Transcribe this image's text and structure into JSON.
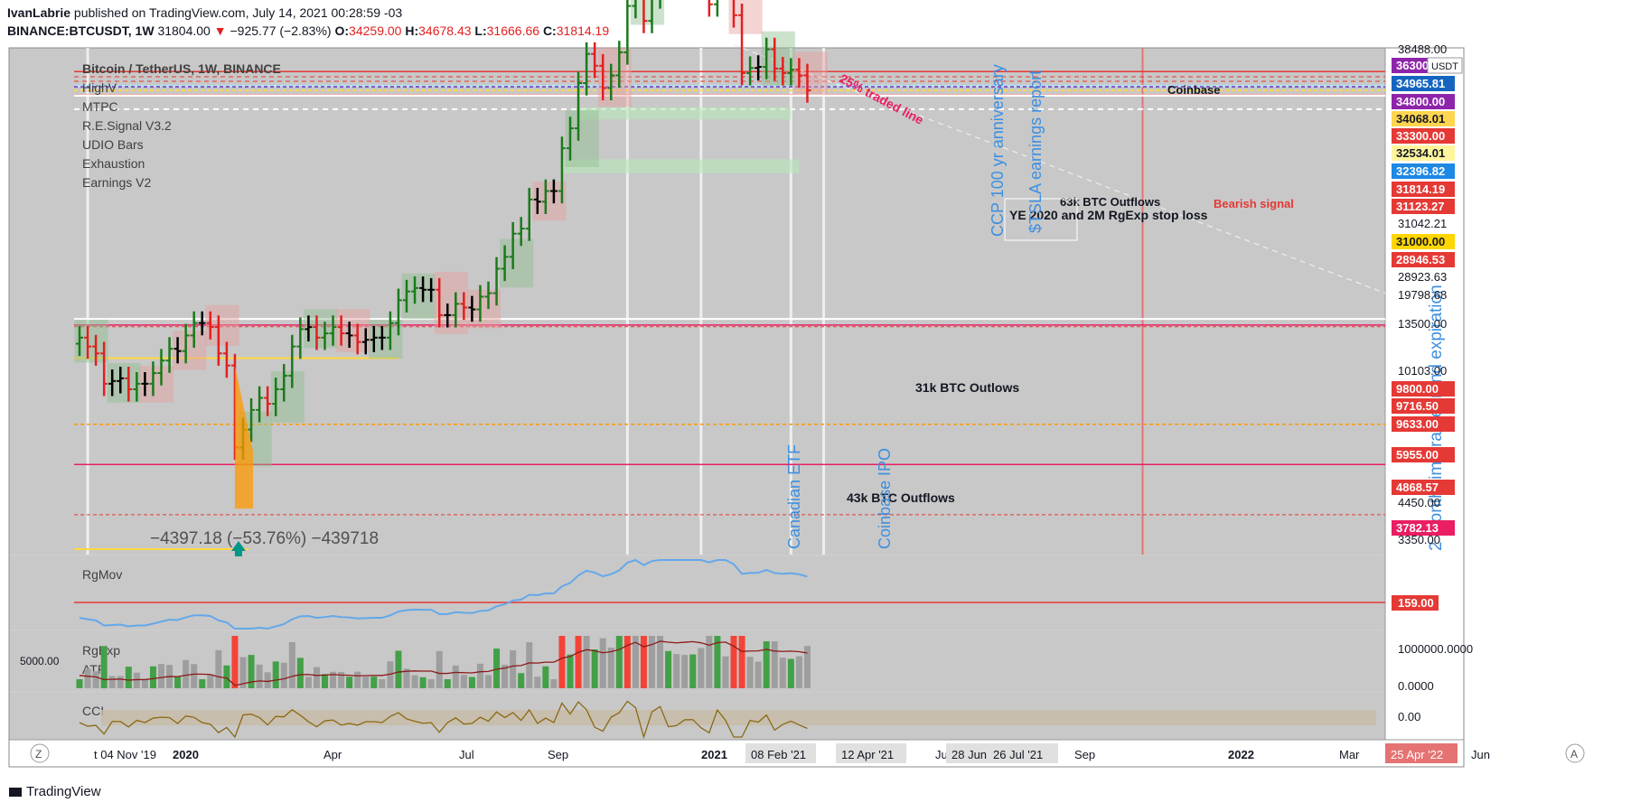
{
  "header": {
    "author": "IvanLabrie",
    "published": "published on TradingView.com, July 14, 2021 00:28:59 -03",
    "symbol": "BINANCE:BTCUSDT, 1W",
    "price": "31804.00",
    "change": "−925.77 (−2.83%)",
    "o_label": "O:",
    "o": "34259.00",
    "h_label": "H:",
    "h": "34678.43",
    "l_label": "L:",
    "l": "31666.66",
    "c_label": "C:",
    "c": "31814.19"
  },
  "legend": {
    "title": "Bitcoin / TetherUS, 1W, BINANCE",
    "indicators": [
      "HighV",
      "MTPC",
      "R.E.Signal V3.2",
      "UDIO Bars",
      "Exhaustion",
      "Earnings V2"
    ]
  },
  "footer": {
    "brand": "TradingView"
  },
  "colors": {
    "bg": "#c8c8c8",
    "up": "#1b7a1b",
    "down": "#e02020",
    "neutral": "#000000",
    "blue": "#3d8fe0",
    "crimson": "#e91e63"
  },
  "chart_data": [
    {
      "type": "line",
      "title": "Bitcoin / TetherUS, 1W, BINANCE",
      "scale": "log",
      "ylim": [
        3300,
        38500
      ],
      "x_ticks": [
        "t 04 Nov '19",
        "2020",
        "Apr",
        "Jul",
        "Sep",
        "2021",
        "08 Feb '21",
        "12 Apr '21",
        "Ju",
        "28 Jun '21",
        "26 Jul '21",
        "Sep",
        "2022",
        "Mar",
        "25 Apr '22",
        "Jun"
      ],
      "weekly_close": [
        {
          "x": "2019-10-28",
          "y": 9200
        },
        {
          "x": "2019-11-04",
          "y": 8800
        },
        {
          "x": "2019-11-11",
          "y": 8500
        },
        {
          "x": "2019-11-18",
          "y": 7300
        },
        {
          "x": "2019-11-25",
          "y": 7400
        },
        {
          "x": "2019-12-02",
          "y": 7500
        },
        {
          "x": "2019-12-09",
          "y": 7100
        },
        {
          "x": "2019-12-16",
          "y": 7300
        },
        {
          "x": "2019-12-23",
          "y": 7300
        },
        {
          "x": "2019-12-30",
          "y": 7700
        },
        {
          "x": "2020-01-06",
          "y": 8200
        },
        {
          "x": "2020-01-13",
          "y": 8700
        },
        {
          "x": "2020-01-20",
          "y": 8600
        },
        {
          "x": "2020-01-27",
          "y": 9300
        },
        {
          "x": "2020-02-03",
          "y": 9900
        },
        {
          "x": "2020-02-10",
          "y": 9900
        },
        {
          "x": "2020-02-17",
          "y": 9700
        },
        {
          "x": "2020-02-24",
          "y": 8500
        },
        {
          "x": "2020-03-02",
          "y": 8000
        },
        {
          "x": "2020-03-09",
          "y": 5300
        },
        {
          "x": "2020-03-16",
          "y": 5800
        },
        {
          "x": "2020-03-23",
          "y": 6400
        },
        {
          "x": "2020-03-30",
          "y": 6800
        },
        {
          "x": "2020-04-06",
          "y": 6600
        },
        {
          "x": "2020-04-13",
          "y": 7100
        },
        {
          "x": "2020-04-20",
          "y": 7600
        },
        {
          "x": "2020-04-27",
          "y": 8800
        },
        {
          "x": "2020-05-04",
          "y": 9600
        },
        {
          "x": "2020-05-11",
          "y": 9700
        },
        {
          "x": "2020-05-18",
          "y": 9200
        },
        {
          "x": "2020-05-25",
          "y": 9400
        },
        {
          "x": "2020-06-01",
          "y": 9700
        },
        {
          "x": "2020-06-08",
          "y": 9400
        },
        {
          "x": "2020-06-15",
          "y": 9300
        },
        {
          "x": "2020-06-22",
          "y": 9000
        },
        {
          "x": "2020-06-29",
          "y": 9100
        },
        {
          "x": "2020-07-06",
          "y": 9200
        },
        {
          "x": "2020-07-13",
          "y": 9200
        },
        {
          "x": "2020-07-20",
          "y": 9900
        },
        {
          "x": "2020-07-27",
          "y": 11100
        },
        {
          "x": "2020-08-03",
          "y": 11600
        },
        {
          "x": "2020-08-10",
          "y": 11800
        },
        {
          "x": "2020-08-17",
          "y": 11700
        },
        {
          "x": "2020-08-24",
          "y": 11700
        },
        {
          "x": "2020-08-31",
          "y": 10300
        },
        {
          "x": "2020-09-07",
          "y": 10300
        },
        {
          "x": "2020-09-14",
          "y": 10900
        },
        {
          "x": "2020-09-21",
          "y": 10700
        },
        {
          "x": "2020-09-28",
          "y": 10600
        },
        {
          "x": "2020-10-05",
          "y": 11300
        },
        {
          "x": "2020-10-12",
          "y": 11500
        },
        {
          "x": "2020-10-19",
          "y": 13000
        },
        {
          "x": "2020-10-26",
          "y": 13800
        },
        {
          "x": "2020-11-02",
          "y": 15500
        },
        {
          "x": "2020-11-09",
          "y": 15900
        },
        {
          "x": "2020-11-16",
          "y": 18400
        },
        {
          "x": "2020-11-23",
          "y": 18200
        },
        {
          "x": "2020-11-30",
          "y": 19200
        },
        {
          "x": "2020-12-07",
          "y": 19200
        },
        {
          "x": "2020-12-14",
          "y": 23800
        },
        {
          "x": "2020-12-21",
          "y": 26300
        },
        {
          "x": "2020-12-28",
          "y": 33000
        },
        {
          "x": "2021-01-04",
          "y": 38200
        },
        {
          "x": "2021-01-11",
          "y": 36000
        },
        {
          "x": "2021-01-18",
          "y": 32200
        },
        {
          "x": "2021-01-25",
          "y": 34300
        },
        {
          "x": "2021-02-01",
          "y": 38500
        },
        {
          "x": "2021-02-08",
          "y": 48600
        },
        {
          "x": "2021-02-15",
          "y": 57500
        },
        {
          "x": "2021-02-22",
          "y": 45100
        },
        {
          "x": "2021-03-01",
          "y": 51000
        },
        {
          "x": "2021-03-08",
          "y": 61100
        },
        {
          "x": "2021-03-15",
          "y": 58000
        },
        {
          "x": "2021-03-22",
          "y": 55800
        },
        {
          "x": "2021-03-29",
          "y": 57700
        },
        {
          "x": "2021-04-05",
          "y": 59800
        },
        {
          "x": "2021-04-12",
          "y": 56000
        },
        {
          "x": "2021-04-19",
          "y": 49000
        },
        {
          "x": "2021-04-26",
          "y": 56600
        },
        {
          "x": "2021-05-03",
          "y": 58200
        },
        {
          "x": "2021-05-10",
          "y": 46400
        },
        {
          "x": "2021-05-17",
          "y": 34700
        },
        {
          "x": "2021-05-24",
          "y": 35600
        },
        {
          "x": "2021-05-31",
          "y": 35800
        },
        {
          "x": "2021-06-07",
          "y": 39100
        },
        {
          "x": "2021-06-14",
          "y": 35500
        },
        {
          "x": "2021-06-21",
          "y": 34700
        },
        {
          "x": "2021-06-28",
          "y": 35300
        },
        {
          "x": "2021-07-05",
          "y": 34300
        },
        {
          "x": "2021-07-12",
          "y": 31814
        }
      ],
      "price_labels": [
        "38488.00",
        "36300",
        "34965.81",
        "34800.00",
        "34068.01",
        "33300.00",
        "32534.01",
        "32396.82",
        "31814.19",
        "31123.27",
        "31042.21",
        "31000.00",
        "28946.53",
        "28923.63",
        "19798.68",
        "13500.00",
        "10103.00",
        "9800.00",
        "9716.50",
        "9633.00",
        "5955.00",
        "4868.57",
        "4450.00",
        "3782.13",
        "3350.00"
      ],
      "usdt_tag": "USDT",
      "annotations": [
        "Coinbase",
        "Bearish signal",
        "63k BTC Outflows",
        "YE 2020 and 2M RgExp stop loss",
        "31k BTC Outlows",
        "43k BTC Outflows",
        "Canadian ETF",
        "Coinbase IPO",
        "CCP 100 yr anniversary",
        "$TSLA earnings report",
        "2 Month timeframe trend expiration",
        "25% traded line",
        "−4397.18 (−53.76%) −439718"
      ]
    },
    {
      "type": "line",
      "title": "RgMov",
      "level_label": "159.00"
    },
    {
      "type": "bar",
      "title": "RgExp",
      "secondary_title": "ATR",
      "left_label": "5000.00",
      "tick_labels": [
        "1000000.0000",
        "0.0000"
      ]
    },
    {
      "type": "line",
      "title": "CCI",
      "tick_labels": [
        "0.00"
      ]
    }
  ],
  "axis_buttons": {
    "left": "Z",
    "right": "A"
  }
}
